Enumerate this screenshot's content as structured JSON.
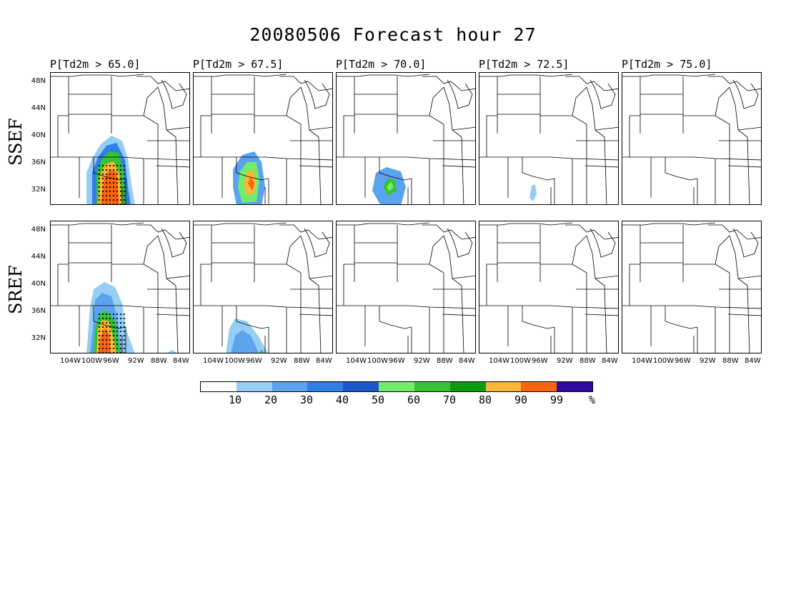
{
  "title": "20080506 Forecast hour 27",
  "rows": [
    {
      "label": "SSEF"
    },
    {
      "label": "SREF"
    }
  ],
  "panels": [
    {
      "title": "P[Td2m > 65.0]"
    },
    {
      "title": "P[Td2m > 67.5]"
    },
    {
      "title": "P[Td2m > 70.0]"
    },
    {
      "title": "P[Td2m > 72.5]"
    },
    {
      "title": "P[Td2m > 75.0]"
    }
  ],
  "y_labels": [
    "48N",
    "44N",
    "40N",
    "36N",
    "32N"
  ],
  "x_labels": [
    "104W",
    "100W",
    "96W",
    "92W",
    "88W",
    "84W"
  ],
  "colorbar": {
    "labels": [
      "10",
      "20",
      "30",
      "40",
      "50",
      "60",
      "70",
      "80",
      "90",
      "99"
    ],
    "unit": "%",
    "colors": [
      "#ffffff",
      "#95cdf5",
      "#5ca3ef",
      "#2e7fe6",
      "#1b58cc",
      "#72ed6a",
      "#36c232",
      "#0d9a0f",
      "#fcb63a",
      "#fb6410",
      "#2e0aa1"
    ]
  },
  "probability_fields": {
    "SSEF": [
      "large area 10-99% over Texas/Oklahoma with stippling",
      "area 10-90% central Texas",
      "small area 10-70% east Texas",
      "small area 10-30% south Texas",
      "none"
    ],
    "SREF": [
      "large area 10-99% over Texas/Oklahoma with stippling",
      "small area 10-70% east Texas",
      "none",
      "none",
      "none"
    ]
  }
}
